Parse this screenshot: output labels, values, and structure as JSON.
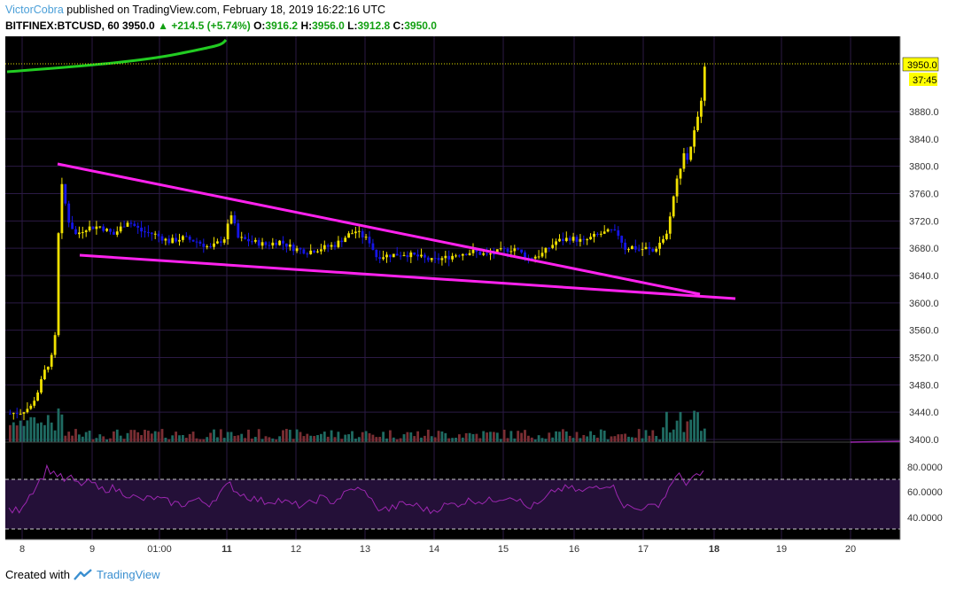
{
  "header": {
    "author": "VictorCobra",
    "published_text": "published on TradingView.com, February 18, 2019 16:22:16 UTC",
    "symbol": "BITFINEX:BTCUSD, 60",
    "price": "3950.0",
    "change": "+214.5 (+5.74%)",
    "o_label": "O:",
    "o_value": "3916.2",
    "h_label": "H:",
    "h_value": "3956.0",
    "l_label": "L:",
    "l_value": "3912.8",
    "c_label": "C:",
    "c_value": "3950.0"
  },
  "footer": {
    "created_with": "Created with",
    "brand": "TradingView"
  },
  "colors": {
    "background": "#000000",
    "grid": "#2b1a45",
    "bull_candle": "#f0e000",
    "bear_candle": "#1515e6",
    "trendline": "#ff22ee",
    "ma_line": "#22cc22",
    "volume_up": "#1f6b62",
    "volume_down": "#7a2e33",
    "rsi_line": "#9c27b0",
    "price_label_bg": "#ffff00"
  },
  "chart_data": {
    "type": "candlestick",
    "price_axis": {
      "ticks": [
        "3880.0",
        "3840.0",
        "3800.0",
        "3760.0",
        "3720.0",
        "3680.0",
        "3640.0",
        "3600.0",
        "3560.0",
        "3520.0",
        "3480.0",
        "3440.0",
        "3400.0"
      ],
      "range": [
        3393,
        3956
      ],
      "last_price_label": "3950.0",
      "countdown_label": "37:45"
    },
    "x_axis": {
      "ticks": [
        "8",
        "9",
        "01:00",
        "11",
        "12",
        "13",
        "14",
        "15",
        "16",
        "17",
        "18",
        "19",
        "20"
      ]
    },
    "trendlines": [
      {
        "name": "upper",
        "points": [
          [
            "8 15:00",
            3801
          ],
          [
            "17 12:00",
            3613
          ]
        ]
      },
      {
        "name": "lower",
        "points": [
          [
            "8 18:00",
            3668
          ],
          [
            "18 06:00",
            3606
          ]
        ]
      }
    ],
    "price_path": [
      [
        0,
        3438
      ],
      [
        3,
        3440
      ],
      [
        6,
        3448
      ],
      [
        8,
        3470
      ],
      [
        10,
        3500
      ],
      [
        12,
        3520
      ],
      [
        13,
        3550
      ],
      [
        14,
        3700
      ],
      [
        15,
        3770
      ],
      [
        17,
        3720
      ],
      [
        19,
        3700
      ],
      [
        22,
        3710
      ],
      [
        26,
        3712
      ],
      [
        30,
        3700
      ],
      [
        34,
        3720
      ],
      [
        38,
        3705
      ],
      [
        42,
        3700
      ],
      [
        46,
        3690
      ],
      [
        50,
        3695
      ],
      [
        54,
        3690
      ],
      [
        58,
        3680
      ],
      [
        62,
        3695
      ],
      [
        64,
        3730
      ],
      [
        66,
        3695
      ],
      [
        70,
        3690
      ],
      [
        74,
        3685
      ],
      [
        78,
        3690
      ],
      [
        82,
        3680
      ],
      [
        86,
        3675
      ],
      [
        90,
        3680
      ],
      [
        94,
        3685
      ],
      [
        98,
        3700
      ],
      [
        100,
        3705
      ],
      [
        104,
        3690
      ],
      [
        106,
        3668
      ],
      [
        110,
        3670
      ],
      [
        114,
        3672
      ],
      [
        118,
        3668
      ],
      [
        122,
        3662
      ],
      [
        126,
        3666
      ],
      [
        130,
        3672
      ],
      [
        134,
        3675
      ],
      [
        138,
        3670
      ],
      [
        142,
        3676
      ],
      [
        146,
        3680
      ],
      [
        150,
        3665
      ],
      [
        154,
        3672
      ],
      [
        158,
        3690
      ],
      [
        162,
        3695
      ],
      [
        166,
        3690
      ],
      [
        170,
        3700
      ],
      [
        174,
        3705
      ],
      [
        176,
        3700
      ],
      [
        178,
        3680
      ],
      [
        180,
        3682
      ],
      [
        182,
        3678
      ],
      [
        184,
        3680
      ],
      [
        186,
        3675
      ],
      [
        188,
        3688
      ],
      [
        190,
        3700
      ],
      [
        191,
        3730
      ],
      [
        192,
        3755
      ],
      [
        193,
        3780
      ],
      [
        194,
        3800
      ],
      [
        195,
        3820
      ],
      [
        196,
        3810
      ],
      [
        197,
        3830
      ],
      [
        198,
        3850
      ],
      [
        199,
        3870
      ],
      [
        200,
        3900
      ],
      [
        201,
        3950
      ]
    ],
    "volume_axis": {
      "note": "unlabeled"
    },
    "rsi": {
      "ticks": [
        "80.0000",
        "60.0000",
        "40.0000"
      ],
      "upper_band": 70,
      "lower_band": 30,
      "path": [
        [
          0,
          38
        ],
        [
          3,
          40
        ],
        [
          6,
          55
        ],
        [
          8,
          65
        ],
        [
          10,
          75
        ],
        [
          11,
          82
        ],
        [
          12,
          80
        ],
        [
          14,
          76
        ],
        [
          16,
          70
        ],
        [
          18,
          72
        ],
        [
          20,
          66
        ],
        [
          24,
          68
        ],
        [
          26,
          60
        ],
        [
          30,
          62
        ],
        [
          34,
          56
        ],
        [
          38,
          50
        ],
        [
          42,
          52
        ],
        [
          46,
          48
        ],
        [
          50,
          45
        ],
        [
          54,
          50
        ],
        [
          58,
          46
        ],
        [
          62,
          60
        ],
        [
          64,
          66
        ],
        [
          66,
          58
        ],
        [
          70,
          52
        ],
        [
          74,
          48
        ],
        [
          78,
          50
        ],
        [
          82,
          45
        ],
        [
          86,
          44
        ],
        [
          90,
          52
        ],
        [
          94,
          48
        ],
        [
          98,
          58
        ],
        [
          100,
          62
        ],
        [
          104,
          56
        ],
        [
          106,
          42
        ],
        [
          110,
          40
        ],
        [
          114,
          46
        ],
        [
          118,
          44
        ],
        [
          122,
          38
        ],
        [
          126,
          44
        ],
        [
          130,
          46
        ],
        [
          134,
          50
        ],
        [
          138,
          48
        ],
        [
          142,
          52
        ],
        [
          146,
          54
        ],
        [
          150,
          42
        ],
        [
          154,
          46
        ],
        [
          158,
          60
        ],
        [
          162,
          62
        ],
        [
          166,
          58
        ],
        [
          170,
          64
        ],
        [
          174,
          66
        ],
        [
          176,
          58
        ],
        [
          178,
          44
        ],
        [
          180,
          42
        ],
        [
          182,
          40
        ],
        [
          184,
          44
        ],
        [
          186,
          42
        ],
        [
          188,
          46
        ],
        [
          190,
          54
        ],
        [
          192,
          70
        ],
        [
          194,
          74
        ],
        [
          196,
          68
        ],
        [
          198,
          72
        ],
        [
          200,
          74
        ],
        [
          201,
          80
        ]
      ]
    }
  }
}
